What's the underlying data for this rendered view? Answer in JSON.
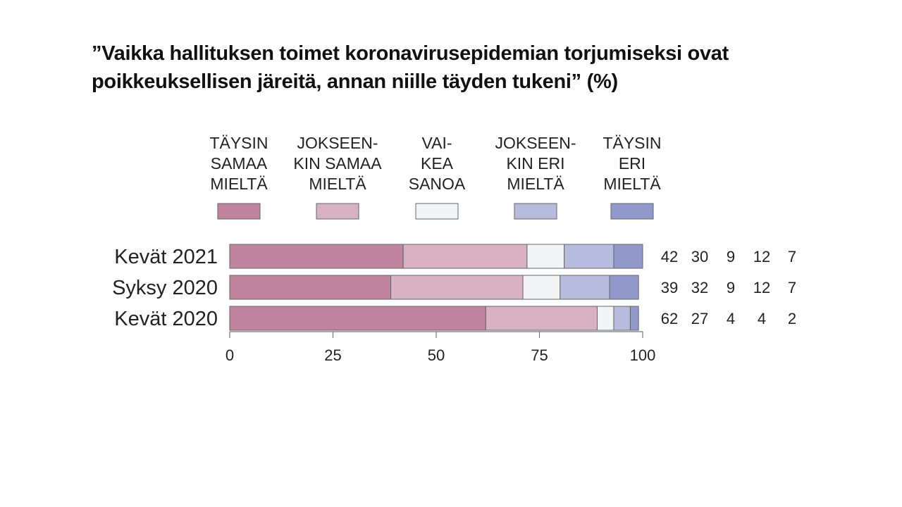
{
  "title": {
    "line1": "”Vaikka hallituksen toimet koronavirusepidemian torjumiseksi ovat",
    "line2": "poikkeuksellisen järeitä, annan niille täyden tukeni” (%)"
  },
  "chart_data": {
    "type": "bar",
    "orientation": "horizontal",
    "stacked": true,
    "title": "”Vaikka hallituksen toimet koronavirusepidemian torjumiseksi ovat poikkeuksellisen järeitä, annan niille täyden tukeni” (%)",
    "categories": [
      "Kevät 2021",
      "Syksy 2020",
      "Kevät 2020"
    ],
    "series": [
      {
        "name": "TÄYSIN SAMAA MIELTÄ",
        "label_lines": [
          "TÄYSIN",
          "SAMAA",
          "MIELTÄ"
        ],
        "color": "#c0849f",
        "values": [
          42,
          39,
          62
        ]
      },
      {
        "name": "JOKSEEN-KIN SAMAA MIELTÄ",
        "label_lines": [
          "JOKSEEN-",
          "KIN SAMAA",
          "MIELTÄ"
        ],
        "color": "#d8b1c2",
        "values": [
          30,
          32,
          27
        ]
      },
      {
        "name": "VAI-KEA SANOA",
        "label_lines": [
          "VAI-",
          "KEA",
          "SANOA"
        ],
        "color": "#f3f4f5",
        "values": [
          9,
          9,
          4
        ]
      },
      {
        "name": "JOKSEEN-KIN ERI MIELTÄ",
        "label_lines": [
          "JOKSEEN-",
          "KIN ERI",
          "MIELTÄ"
        ],
        "color": "#b7bcdf",
        "values": [
          12,
          12,
          4
        ]
      },
      {
        "name": "TÄYSIN ERI MIELTÄ",
        "label_lines": [
          "TÄYSIN",
          "ERI",
          "MIELTÄ"
        ],
        "color": "#9199cc",
        "values": [
          7,
          7,
          2
        ]
      }
    ],
    "xlim": [
      0,
      100
    ],
    "xticks": [
      0,
      25,
      50,
      75,
      100
    ],
    "xlabel": "",
    "ylabel": "",
    "grid": false,
    "legend": "top",
    "value_labels": "right-of-bars"
  }
}
